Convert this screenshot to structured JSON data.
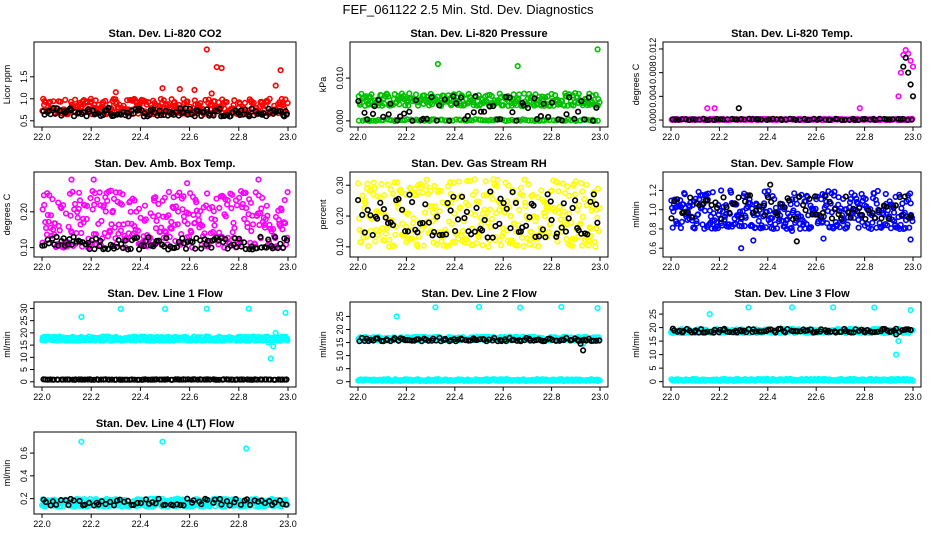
{
  "figure": {
    "title": "FEF_061122  2.5 Min. Std. Dev. Diagnostics"
  },
  "colors": {
    "red": "#ff0000",
    "green": "#00c000",
    "magenta": "#ff00ff",
    "yellow": "#ffff00",
    "blue": "#0000ff",
    "cyan": "#00ffff",
    "black": "#000000"
  },
  "chart_data": [
    {
      "type": "scatter",
      "title": "Stan. Dev. Li-820 CO2",
      "ylabel": "Licor ppm",
      "xlim": [
        22.0,
        23.0
      ],
      "ylim": [
        0.45,
        2.2
      ],
      "xticks": [
        "22.0",
        "22.2",
        "22.4",
        "22.6",
        "22.8",
        "23.0"
      ],
      "yticks": [
        0.5,
        1.0,
        1.5
      ],
      "yticklabels": [
        "0.5",
        "1.0",
        "1.5"
      ],
      "grid": false,
      "series": [
        {
          "color": "red",
          "band": [
            0.65,
            1.0
          ],
          "n": 300,
          "outliers": [
            [
              22.67,
              2.12
            ],
            [
              22.69,
              1.12
            ],
            [
              22.71,
              1.72
            ],
            [
              22.73,
              1.7
            ],
            [
              22.95,
              1.3
            ],
            [
              22.97,
              1.65
            ],
            [
              22.56,
              1.22
            ],
            [
              22.62,
              1.2
            ],
            [
              22.3,
              1.15
            ],
            [
              22.49,
              1.24
            ]
          ]
        },
        {
          "color": "black",
          "band": [
            0.6,
            0.8
          ],
          "n": 120,
          "outliers": [
            [
              22.99,
              0.72
            ]
          ]
        }
      ]
    },
    {
      "type": "scatter",
      "title": "Stan. Dev. Li-820 Pressure",
      "ylabel": "kPa",
      "xlim": [
        22.0,
        23.0
      ],
      "ylim": [
        -0.0005,
        0.0175
      ],
      "xticks": [
        "22.0",
        "22.2",
        "22.4",
        "22.6",
        "22.8",
        "23.0"
      ],
      "yticks": [
        0.0,
        0.01
      ],
      "yticklabels": [
        "0.000",
        "0.010"
      ],
      "grid": false,
      "series": [
        {
          "color": "green",
          "band": [
            0.0035,
            0.0065
          ],
          "n": 260,
          "outliers": [
            [
              22.33,
              0.0133
            ],
            [
              22.66,
              0.0128
            ],
            [
              22.99,
              0.0167
            ]
          ]
        },
        {
          "color": "green",
          "band": [
            0.0,
            0.0004
          ],
          "n": 90,
          "outliers": []
        },
        {
          "color": "black",
          "band": [
            0.0,
            0.0058
          ],
          "n": 60,
          "outliers": []
        }
      ]
    },
    {
      "type": "scatter",
      "title": "Stan. Dev. Li-820 Temp.",
      "ylabel": "degrees C",
      "xlim": [
        22.0,
        23.0
      ],
      "ylim": [
        -0.0005,
        0.0125
      ],
      "xticks": [
        "22.0",
        "22.2",
        "22.4",
        "22.6",
        "22.8",
        "23.0"
      ],
      "yticks": [
        0.0,
        0.004,
        0.008,
        0.012
      ],
      "yticklabels": [
        "0.000",
        "0.004",
        "0.008",
        "0.012"
      ],
      "grid": false,
      "series": [
        {
          "color": "magenta",
          "band": [
            0.0,
            0.0002
          ],
          "n": 200,
          "outliers": [
            [
              22.15,
              0.002
            ],
            [
              22.18,
              0.002
            ],
            [
              22.78,
              0.002
            ],
            [
              22.94,
              0.004
            ],
            [
              22.95,
              0.008
            ],
            [
              22.96,
              0.011
            ],
            [
              22.97,
              0.0118
            ],
            [
              22.98,
              0.0112
            ],
            [
              22.99,
              0.01
            ],
            [
              23.0,
              0.009
            ]
          ]
        },
        {
          "color": "black",
          "band": [
            0.0,
            0.0002
          ],
          "n": 70,
          "outliers": [
            [
              22.28,
              0.002
            ],
            [
              22.96,
              0.009
            ],
            [
              22.97,
              0.0105
            ],
            [
              22.98,
              0.008
            ],
            [
              22.99,
              0.006
            ],
            [
              23.0,
              0.004
            ]
          ]
        }
      ]
    },
    {
      "type": "scatter",
      "title": "Stan. Dev. Amb. Box Temp.",
      "ylabel": "degrees C",
      "xlim": [
        22.0,
        23.0
      ],
      "ylim": [
        0.085,
        0.3
      ],
      "xticks": [
        "22.0",
        "22.2",
        "22.4",
        "22.6",
        "22.8",
        "23.0"
      ],
      "yticks": [
        0.1,
        0.2
      ],
      "yticklabels": [
        "0.10",
        "0.20"
      ],
      "grid": false,
      "series": [
        {
          "color": "magenta",
          "band": [
            0.1,
            0.26
          ],
          "n": 340,
          "outliers": [
            [
              22.12,
              0.29
            ],
            [
              22.21,
              0.29
            ],
            [
              22.88,
              0.29
            ],
            [
              22.59,
              0.28
            ]
          ]
        },
        {
          "color": "black",
          "band": [
            0.095,
            0.13
          ],
          "n": 110,
          "outliers": []
        }
      ]
    },
    {
      "type": "scatter",
      "title": "Stan. Dev. Gas Stream RH",
      "ylabel": "percent",
      "xlim": [
        22.0,
        23.0
      ],
      "ylim": [
        0.08,
        0.33
      ],
      "xticks": [
        "22.0",
        "22.2",
        "22.4",
        "22.6",
        "22.8",
        "23.0"
      ],
      "yticks": [
        0.1,
        0.2,
        0.3
      ],
      "yticklabels": [
        "0.10",
        "0.20",
        "0.30"
      ],
      "grid": false,
      "series": [
        {
          "color": "yellow",
          "band": [
            0.1,
            0.32
          ],
          "n": 340,
          "outliers": []
        },
        {
          "color": "black",
          "band": [
            0.13,
            0.28
          ],
          "n": 90,
          "outliers": []
        }
      ]
    },
    {
      "type": "scatter",
      "title": "Stan. Dev. Sample Flow",
      "ylabel": "ml/min",
      "xlim": [
        22.0,
        23.0
      ],
      "ylim": [
        0.55,
        1.35
      ],
      "xticks": [
        "22.0",
        "22.2",
        "22.4",
        "22.6",
        "22.8",
        "23.0"
      ],
      "yticks": [
        0.6,
        0.8,
        1.0,
        1.2
      ],
      "yticklabels": [
        "0.6",
        "0.8",
        "1.0",
        "1.2"
      ],
      "grid": false,
      "series": [
        {
          "color": "blue",
          "band": [
            0.8,
            1.2
          ],
          "n": 360,
          "outliers": [
            [
              22.29,
              0.6
            ],
            [
              22.34,
              0.68
            ],
            [
              22.5,
              0.78
            ],
            [
              22.99,
              0.69
            ],
            [
              22.63,
              0.7
            ]
          ]
        },
        {
          "color": "black",
          "band": [
            0.9,
            1.15
          ],
          "n": 80,
          "outliers": [
            [
              22.52,
              0.67
            ],
            [
              22.41,
              1.26
            ]
          ]
        }
      ]
    },
    {
      "type": "scatter",
      "title": "Stan. Dev. Line 1 Flow",
      "ylabel": "ml/min",
      "xlim": [
        22.0,
        23.0
      ],
      "ylim": [
        -0.5,
        31
      ],
      "xticks": [
        "22.0",
        "22.2",
        "22.4",
        "22.6",
        "22.8",
        "23.0"
      ],
      "yticks": [
        0,
        5,
        10,
        15,
        20,
        25,
        30
      ],
      "yticklabels": [
        "0",
        "5",
        "10",
        "15",
        "20",
        "25",
        "30"
      ],
      "grid": false,
      "series": [
        {
          "color": "cyan",
          "band": [
            16.8,
            18.5
          ],
          "n": 380,
          "outliers": [
            [
              22.16,
              26.5
            ],
            [
              22.32,
              29.8
            ],
            [
              22.5,
              29.8
            ],
            [
              22.67,
              29.9
            ],
            [
              22.84,
              29.9
            ],
            [
              22.99,
              28.2
            ],
            [
              22.93,
              9.5
            ],
            [
              22.94,
              14.5
            ],
            [
              22.95,
              20
            ],
            [
              22.92,
              16
            ]
          ]
        },
        {
          "color": "black",
          "band": [
            0.8,
            1.0
          ],
          "n": 110,
          "outliers": []
        }
      ]
    },
    {
      "type": "scatter",
      "title": "Stan. Dev. Line 2 Flow",
      "ylabel": "ml/min",
      "xlim": [
        22.0,
        23.0
      ],
      "ylim": [
        -0.5,
        29
      ],
      "xticks": [
        "22.0",
        "22.2",
        "22.4",
        "22.6",
        "22.8",
        "23.0"
      ],
      "yticks": [
        0,
        5,
        10,
        15,
        20,
        25
      ],
      "yticklabels": [
        "0",
        "5",
        "10",
        "15",
        "20",
        "25"
      ],
      "grid": false,
      "series": [
        {
          "color": "cyan",
          "band": [
            15.8,
            17.2
          ],
          "n": 300,
          "outliers": [
            [
              22.16,
              25
            ],
            [
              22.32,
              28.5
            ],
            [
              22.5,
              28.6
            ],
            [
              22.67,
              28.4
            ],
            [
              22.84,
              28.6
            ],
            [
              22.99,
              28.2
            ],
            [
              22.93,
              14.5
            ]
          ]
        },
        {
          "color": "cyan",
          "band": [
            0.3,
            1.0
          ],
          "n": 260,
          "outliers": []
        },
        {
          "color": "black",
          "band": [
            15.5,
            16.8
          ],
          "n": 100,
          "outliers": [
            [
              22.93,
              12
            ],
            [
              22.92,
              14.5
            ]
          ]
        }
      ]
    },
    {
      "type": "scatter",
      "title": "Stan. Dev. Line 3 Flow",
      "ylabel": "ml/min",
      "xlim": [
        22.0,
        23.0
      ],
      "ylim": [
        -0.5,
        28
      ],
      "xticks": [
        "22.0",
        "22.2",
        "22.4",
        "22.6",
        "22.8",
        "23.0"
      ],
      "yticks": [
        0,
        5,
        10,
        15,
        20,
        25
      ],
      "yticklabels": [
        "0",
        "5",
        "10",
        "15",
        "20",
        "25"
      ],
      "grid": false,
      "series": [
        {
          "color": "cyan",
          "band": [
            18.0,
            19.5
          ],
          "n": 300,
          "outliers": [
            [
              22.16,
              25
            ],
            [
              22.32,
              27.5
            ],
            [
              22.5,
              27.5
            ],
            [
              22.67,
              27.5
            ],
            [
              22.84,
              27.4
            ],
            [
              22.99,
              26.5
            ],
            [
              22.93,
              10
            ],
            [
              22.94,
              15
            ]
          ]
        },
        {
          "color": "cyan",
          "band": [
            0.3,
            1.0
          ],
          "n": 260,
          "outliers": []
        },
        {
          "color": "black",
          "band": [
            18.2,
            19.6
          ],
          "n": 100,
          "outliers": [
            [
              22.93,
              17.5
            ]
          ]
        }
      ]
    },
    {
      "type": "scatter",
      "title": "Stan. Dev. Line 4 (LT) Flow",
      "ylabel": "ml/min",
      "xlim": [
        22.0,
        23.0
      ],
      "ylim": [
        0.1,
        0.75
      ],
      "xticks": [
        "22.0",
        "22.2",
        "22.4",
        "22.6",
        "22.8",
        "23.0"
      ],
      "yticks": [
        0.2,
        0.4,
        0.6
      ],
      "yticklabels": [
        "0.2",
        "0.4",
        "0.6"
      ],
      "grid": false,
      "series": [
        {
          "color": "cyan",
          "band": [
            0.13,
            0.2
          ],
          "n": 340,
          "outliers": [
            [
              22.16,
              0.7
            ],
            [
              22.49,
              0.7
            ],
            [
              22.83,
              0.64
            ]
          ]
        },
        {
          "color": "black",
          "band": [
            0.14,
            0.2
          ],
          "n": 70,
          "outliers": []
        }
      ]
    }
  ]
}
